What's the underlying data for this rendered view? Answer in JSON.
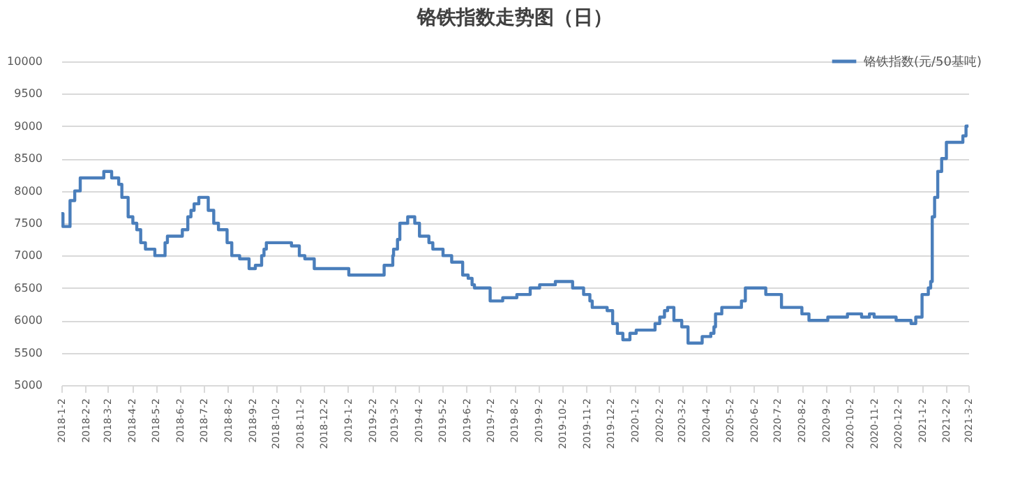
{
  "chart_data": {
    "type": "step",
    "title": "铬铁指数走势图（日）",
    "x": [
      "2018-01-02",
      "2018-01-04",
      "2018-01-13",
      "2018-01-19",
      "2018-01-26",
      "2018-02-25",
      "2018-03-07",
      "2018-03-16",
      "2018-03-20",
      "2018-03-28",
      "2018-04-03",
      "2018-04-08",
      "2018-04-13",
      "2018-04-19",
      "2018-05-01",
      "2018-05-14",
      "2018-05-17",
      "2018-06-05",
      "2018-06-12",
      "2018-06-16",
      "2018-06-20",
      "2018-06-26",
      "2018-07-08",
      "2018-07-15",
      "2018-07-21",
      "2018-08-01",
      "2018-08-07",
      "2018-08-17",
      "2018-08-29",
      "2018-09-06",
      "2018-09-14",
      "2018-09-17",
      "2018-09-20",
      "2018-10-22",
      "2018-11-01",
      "2018-11-08",
      "2018-11-20",
      "2019-01-03",
      "2019-02-17",
      "2019-02-28",
      "2019-03-01",
      "2019-03-06",
      "2019-03-09",
      "2019-03-19",
      "2019-03-28",
      "2019-04-03",
      "2019-04-15",
      "2019-04-20",
      "2019-05-03",
      "2019-05-14",
      "2019-05-28",
      "2019-06-04",
      "2019-06-09",
      "2019-06-12",
      "2019-07-02",
      "2019-07-18",
      "2019-08-05",
      "2019-08-22",
      "2019-09-03",
      "2019-09-23",
      "2019-10-15",
      "2019-10-29",
      "2019-11-06",
      "2019-11-09",
      "2019-11-28",
      "2019-12-05",
      "2019-12-11",
      "2019-12-18",
      "2019-12-27",
      "2020-01-04",
      "2020-01-28",
      "2020-02-03",
      "2020-02-09",
      "2020-02-13",
      "2020-02-21",
      "2020-03-02",
      "2020-03-10",
      "2020-03-28",
      "2020-04-08",
      "2020-04-12",
      "2020-04-14",
      "2020-04-22",
      "2020-05-17",
      "2020-05-22",
      "2020-06-17",
      "2020-07-07",
      "2020-08-02",
      "2020-08-11",
      "2020-09-04",
      "2020-09-29",
      "2020-10-17",
      "2020-10-27",
      "2020-11-02",
      "2020-11-30",
      "2020-12-19",
      "2020-12-25",
      "2021-01-02",
      "2021-01-10",
      "2021-01-13",
      "2021-01-15",
      "2021-01-18",
      "2021-01-22",
      "2021-01-27",
      "2021-02-02",
      "2021-02-23",
      "2021-02-27",
      "2021-03-02"
    ],
    "series": [
      {
        "name": "铬铁指数(元/50基吨)",
        "color": "#4a7ebb",
        "values": [
          7650,
          7450,
          7850,
          8000,
          8200,
          8300,
          8200,
          8100,
          7900,
          7600,
          7500,
          7400,
          7200,
          7100,
          7000,
          7200,
          7300,
          7400,
          7600,
          7700,
          7800,
          7900,
          7700,
          7500,
          7400,
          7200,
          7000,
          6950,
          6800,
          6850,
          7000,
          7100,
          7200,
          7150,
          7000,
          6950,
          6800,
          6700,
          6850,
          7000,
          7100,
          7250,
          7500,
          7600,
          7500,
          7300,
          7200,
          7100,
          7000,
          6900,
          6700,
          6650,
          6550,
          6500,
          6300,
          6350,
          6400,
          6500,
          6550,
          6600,
          6500,
          6400,
          6300,
          6200,
          6150,
          5950,
          5800,
          5700,
          5800,
          5850,
          5950,
          6050,
          6150,
          6200,
          6000,
          5900,
          5650,
          5750,
          5800,
          5900,
          6100,
          6200,
          6300,
          6500,
          6400,
          6200,
          6100,
          6000,
          6050,
          6100,
          6050,
          6100,
          6050,
          6000,
          5950,
          6050,
          6400,
          6500,
          6600,
          7600,
          7900,
          8300,
          8500,
          8750,
          8850,
          9000,
          9000
        ]
      }
    ],
    "xlim": [
      "2018-01-02",
      "2021-03-02"
    ],
    "xticks": [
      {
        "value": "2018-01-02",
        "label": "2018-1-2"
      },
      {
        "value": "2018-02-02",
        "label": "2018-2-2"
      },
      {
        "value": "2018-03-02",
        "label": "2018-3-2"
      },
      {
        "value": "2018-04-02",
        "label": "2018-4-2"
      },
      {
        "value": "2018-05-02",
        "label": "2018-5-2"
      },
      {
        "value": "2018-06-02",
        "label": "2018-6-2"
      },
      {
        "value": "2018-07-02",
        "label": "2018-7-2"
      },
      {
        "value": "2018-08-02",
        "label": "2018-8-2"
      },
      {
        "value": "2018-09-02",
        "label": "2018-9-2"
      },
      {
        "value": "2018-10-02",
        "label": "2018-10-2"
      },
      {
        "value": "2018-11-02",
        "label": "2018-11-2"
      },
      {
        "value": "2018-12-02",
        "label": "2018-12-2"
      },
      {
        "value": "2019-01-02",
        "label": "2019-1-2"
      },
      {
        "value": "2019-02-02",
        "label": "2019-2-2"
      },
      {
        "value": "2019-03-02",
        "label": "2019-3-2"
      },
      {
        "value": "2019-04-02",
        "label": "2019-4-2"
      },
      {
        "value": "2019-05-02",
        "label": "2019-5-2"
      },
      {
        "value": "2019-06-02",
        "label": "2019-6-2"
      },
      {
        "value": "2019-07-02",
        "label": "2019-7-2"
      },
      {
        "value": "2019-08-02",
        "label": "2019-8-2"
      },
      {
        "value": "2019-09-02",
        "label": "2019-9-2"
      },
      {
        "value": "2019-10-02",
        "label": "2019-10-2"
      },
      {
        "value": "2019-11-02",
        "label": "2019-11-2"
      },
      {
        "value": "2019-12-02",
        "label": "2019-12-2"
      },
      {
        "value": "2020-01-02",
        "label": "2020-1-2"
      },
      {
        "value": "2020-02-02",
        "label": "2020-2-2"
      },
      {
        "value": "2020-03-02",
        "label": "2020-3-2"
      },
      {
        "value": "2020-04-02",
        "label": "2020-4-2"
      },
      {
        "value": "2020-05-02",
        "label": "2020-5-2"
      },
      {
        "value": "2020-06-02",
        "label": "2020-6-2"
      },
      {
        "value": "2020-07-02",
        "label": "2020-7-2"
      },
      {
        "value": "2020-08-02",
        "label": "2020-8-2"
      },
      {
        "value": "2020-09-02",
        "label": "2020-9-2"
      },
      {
        "value": "2020-10-02",
        "label": "2020-10-2"
      },
      {
        "value": "2020-11-02",
        "label": "2020-11-2"
      },
      {
        "value": "2020-12-02",
        "label": "2020-12-2"
      },
      {
        "value": "2021-01-02",
        "label": "2021-1-2"
      },
      {
        "value": "2021-02-02",
        "label": "2021-2-2"
      },
      {
        "value": "2021-03-02",
        "label": "2021-3-2"
      }
    ],
    "ylim": [
      5000,
      10000
    ],
    "yticks": [
      5000,
      5500,
      6000,
      6500,
      7000,
      7500,
      8000,
      8500,
      9000,
      9500,
      10000
    ],
    "grid": "y",
    "legend": "top right",
    "line_style": "solid",
    "marker": "none"
  }
}
